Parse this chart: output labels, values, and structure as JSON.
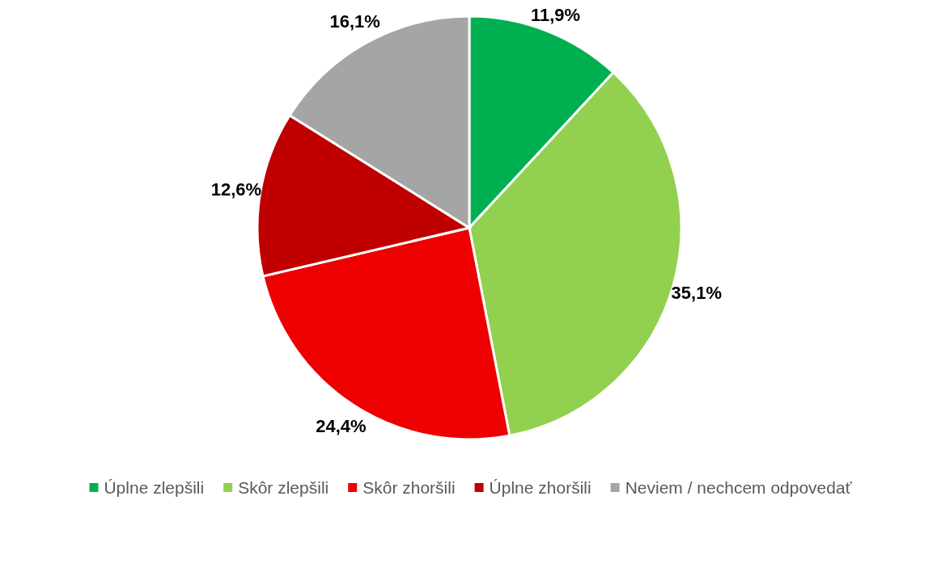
{
  "chart_data": {
    "type": "pie",
    "categories": [
      "Úplne zlepšili",
      "Skôr zlepšili",
      "Skôr zhoršili",
      "Úplne zhoršili",
      "Neviem / nechcem odpovedať"
    ],
    "values": [
      11.9,
      35.1,
      24.4,
      12.6,
      16.1
    ],
    "value_labels": [
      "11,9%",
      "35,1%",
      "24,4%",
      "12,6%",
      "16,1%"
    ],
    "colors": [
      "#00b050",
      "#92d050",
      "#ee0000",
      "#c00000",
      "#a5a5a5"
    ],
    "legend": "bottom"
  }
}
